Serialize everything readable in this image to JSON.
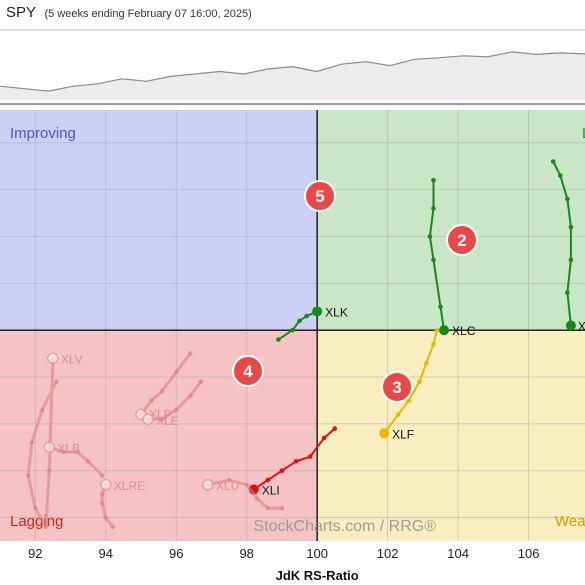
{
  "header": {
    "symbol": "SPY",
    "period": "(5 weeks ending February 07 16:00, 2025)"
  },
  "colors": {
    "improving": "#cdd0f5",
    "leading": "#c9e6c6",
    "lagging": "#f5c3c3",
    "weakening": "#f8eec0",
    "quadrant_label_improving": "#4a57c9",
    "quadrant_label_leading": "#2e8b2e",
    "quadrant_label_lagging": "#cc2222",
    "quadrant_label_weakening": "#c8a000",
    "badge": "#e94848"
  },
  "chart_data": {
    "type": "scatter",
    "title": "",
    "xlabel": "JdK RS-Ratio",
    "ylabel": "",
    "xlim": [
      91,
      107.6
    ],
    "ylim": [
      95.5,
      104.7
    ],
    "x_ticks": [
      92,
      94,
      96,
      98,
      100,
      102,
      104,
      106
    ],
    "center": [
      100,
      100
    ],
    "grid": true,
    "quadrants": [
      "Improving",
      "Leading",
      "Lagging",
      "Weakening"
    ],
    "watermark": "StockCharts.com / RRG®",
    "annotations": [
      "2",
      "3",
      "4",
      "5"
    ],
    "series": [
      {
        "name": "XLC",
        "color": "#168a16",
        "faded": false,
        "x": [
          103.3,
          103.3,
          103.2,
          103.3,
          103.5,
          103.6
        ],
        "y": [
          103.2,
          102.6,
          102.0,
          101.5,
          100.5,
          100.0
        ]
      },
      {
        "name": "XLK",
        "color": "#168a16",
        "faded": false,
        "x": [
          98.9,
          99.3,
          99.5,
          99.7,
          100.0
        ],
        "y": [
          99.8,
          100.0,
          100.2,
          100.3,
          100.4
        ]
      },
      {
        "name": "XLY",
        "color": "#168a16",
        "faded": false,
        "x": [
          106.7,
          106.9,
          107.1,
          107.2,
          107.2,
          107.1,
          107.2
        ],
        "y": [
          103.6,
          103.3,
          102.8,
          102.2,
          101.5,
          100.8,
          100.1
        ]
      },
      {
        "name": "XLF",
        "color": "#e6b800",
        "faded": false,
        "x": [
          103.4,
          103.3,
          103.1,
          102.9,
          102.6,
          102.3,
          101.9
        ],
        "y": [
          100.0,
          99.7,
          99.3,
          98.9,
          98.5,
          98.2,
          97.8
        ]
      },
      {
        "name": "XLI",
        "color": "#e01010",
        "faded": false,
        "x": [
          100.5,
          100.2,
          99.8,
          99.4,
          99.0,
          98.6,
          98.2
        ],
        "y": [
          97.9,
          97.7,
          97.3,
          97.2,
          97.0,
          96.8,
          96.6
        ]
      },
      {
        "name": "XLV",
        "color": "#e07878",
        "faded": true,
        "x": [
          92.6,
          92.2,
          91.9,
          91.8,
          92.0,
          92.3,
          92.4,
          92.5
        ],
        "y": [
          98.9,
          98.3,
          97.6,
          96.9,
          96.2,
          95.8,
          97.0,
          99.4
        ]
      },
      {
        "name": "XLP",
        "color": "#e07878",
        "faded": true,
        "x": [
          96.4,
          96.0,
          95.6,
          95.3,
          95.0
        ],
        "y": [
          99.5,
          99.1,
          98.7,
          98.5,
          98.2
        ]
      },
      {
        "name": "XLE",
        "color": "#e07878",
        "faded": true,
        "x": [
          96.7,
          96.4,
          96.0,
          95.6,
          95.2
        ],
        "y": [
          98.9,
          98.6,
          98.3,
          98.1,
          98.1
        ]
      },
      {
        "name": "XLB",
        "color": "#e07878",
        "faded": true,
        "x": [
          93.9,
          93.5,
          93.2,
          92.8,
          92.4
        ],
        "y": [
          96.9,
          97.2,
          97.4,
          97.4,
          97.5
        ]
      },
      {
        "name": "XLRE",
        "color": "#e07878",
        "faded": true,
        "x": [
          94.2,
          94.0,
          93.9,
          93.9,
          94.0
        ],
        "y": [
          95.8,
          96.0,
          96.3,
          96.5,
          96.7
        ]
      },
      {
        "name": "XLU",
        "color": "#e07878",
        "faded": true,
        "x": [
          99.0,
          98.6,
          98.3,
          98.0,
          97.5,
          96.9
        ],
        "y": [
          96.2,
          96.2,
          96.4,
          96.7,
          96.8,
          96.7
        ]
      }
    ]
  },
  "price_line": [
    0.2,
    0.15,
    0.1,
    0.2,
    0.25,
    0.35,
    0.3,
    0.4,
    0.45,
    0.5,
    0.45,
    0.55,
    0.6,
    0.5,
    0.65,
    0.7,
    0.62,
    0.75,
    0.78,
    0.82,
    0.8,
    0.9,
    0.85,
    0.88,
    0.86
  ]
}
